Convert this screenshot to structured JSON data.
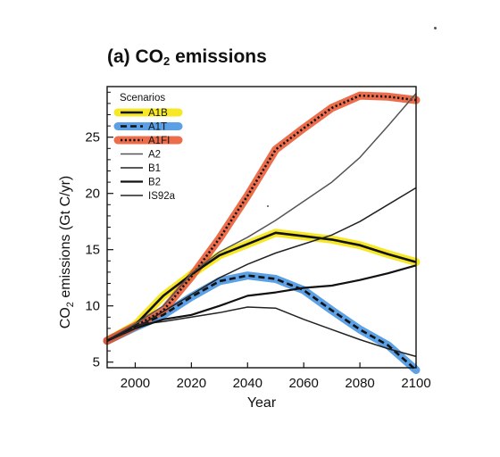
{
  "chart_data": {
    "type": "line",
    "title_prefix": "(a) CO",
    "title_sub": "2",
    "title_suffix": " emissions",
    "xlabel": "Year",
    "ylabel_prefix": "CO",
    "ylabel_sub": "2",
    "ylabel_suffix": " emissions (Gt C/yr)",
    "xlim": [
      1990,
      2100
    ],
    "ylim": [
      4.5,
      29.5
    ],
    "xticks": [
      2000,
      2020,
      2040,
      2060,
      2080,
      2100
    ],
    "yticks": [
      5,
      10,
      15,
      20,
      25
    ],
    "grid": false,
    "legend_title": "Scenarios",
    "legend_position": "top-left",
    "series": [
      {
        "name": "A1B",
        "color": "#111111",
        "highlight": "#f5e400",
        "style": "solid",
        "width": 2.6,
        "x": [
          1990,
          2000,
          2010,
          2020,
          2030,
          2040,
          2050,
          2060,
          2070,
          2080,
          2090,
          2100
        ],
        "y": [
          6.9,
          8.3,
          10.9,
          12.8,
          14.5,
          15.5,
          16.5,
          16.2,
          15.9,
          15.4,
          14.6,
          13.9
        ]
      },
      {
        "name": "A1T",
        "color": "#111111",
        "highlight": "#3f8fe0",
        "style": "dashed",
        "width": 2.6,
        "x": [
          1990,
          2000,
          2010,
          2020,
          2030,
          2040,
          2050,
          2060,
          2070,
          2080,
          2090,
          2100
        ],
        "y": [
          6.9,
          8.1,
          9.2,
          10.8,
          12.2,
          12.7,
          12.4,
          11.4,
          9.6,
          7.9,
          6.5,
          4.3
        ]
      },
      {
        "name": "A1FI",
        "color": "#111111",
        "highlight": "#e8542c",
        "style": "dotted",
        "width": 2.6,
        "x": [
          1990,
          2000,
          2010,
          2020,
          2030,
          2040,
          2050,
          2060,
          2070,
          2080,
          2090,
          2100
        ],
        "y": [
          6.9,
          8.2,
          9.6,
          12.6,
          16.0,
          19.8,
          23.9,
          25.8,
          27.6,
          28.7,
          28.6,
          28.3
        ]
      },
      {
        "name": "A2",
        "color": "#555555",
        "highlight": "",
        "style": "solid",
        "width": 1.5,
        "x": [
          1990,
          2000,
          2010,
          2020,
          2030,
          2040,
          2050,
          2060,
          2070,
          2080,
          2090,
          2100
        ],
        "y": [
          6.9,
          8.4,
          10.0,
          12.9,
          14.8,
          16.1,
          17.6,
          19.3,
          21.0,
          23.2,
          26.0,
          28.9
        ]
      },
      {
        "name": "B1",
        "color": "#222222",
        "highlight": "",
        "style": "solid",
        "width": 1.5,
        "x": [
          1990,
          2000,
          2010,
          2020,
          2030,
          2040,
          2050,
          2060,
          2070,
          2080,
          2090,
          2100
        ],
        "y": [
          6.9,
          8.3,
          8.6,
          9.0,
          9.4,
          9.9,
          9.8,
          8.8,
          7.9,
          7.0,
          6.2,
          5.5
        ]
      },
      {
        "name": "B2",
        "color": "#111111",
        "highlight": "",
        "style": "solid",
        "width": 2.2,
        "x": [
          1990,
          2000,
          2010,
          2020,
          2030,
          2040,
          2050,
          2060,
          2070,
          2080,
          2090,
          2100
        ],
        "y": [
          6.9,
          8.0,
          8.8,
          9.2,
          10.0,
          10.9,
          11.2,
          11.6,
          11.8,
          12.3,
          12.9,
          13.6
        ]
      },
      {
        "name": "IS92a",
        "color": "#222222",
        "highlight": "",
        "style": "solid",
        "width": 1.5,
        "x": [
          1990,
          2000,
          2010,
          2020,
          2030,
          2040,
          2050,
          2060,
          2070,
          2080,
          2090,
          2100
        ],
        "y": [
          6.9,
          8.0,
          9.5,
          11.0,
          12.5,
          13.7,
          14.7,
          15.5,
          16.3,
          17.5,
          19.0,
          20.5
        ]
      }
    ]
  }
}
